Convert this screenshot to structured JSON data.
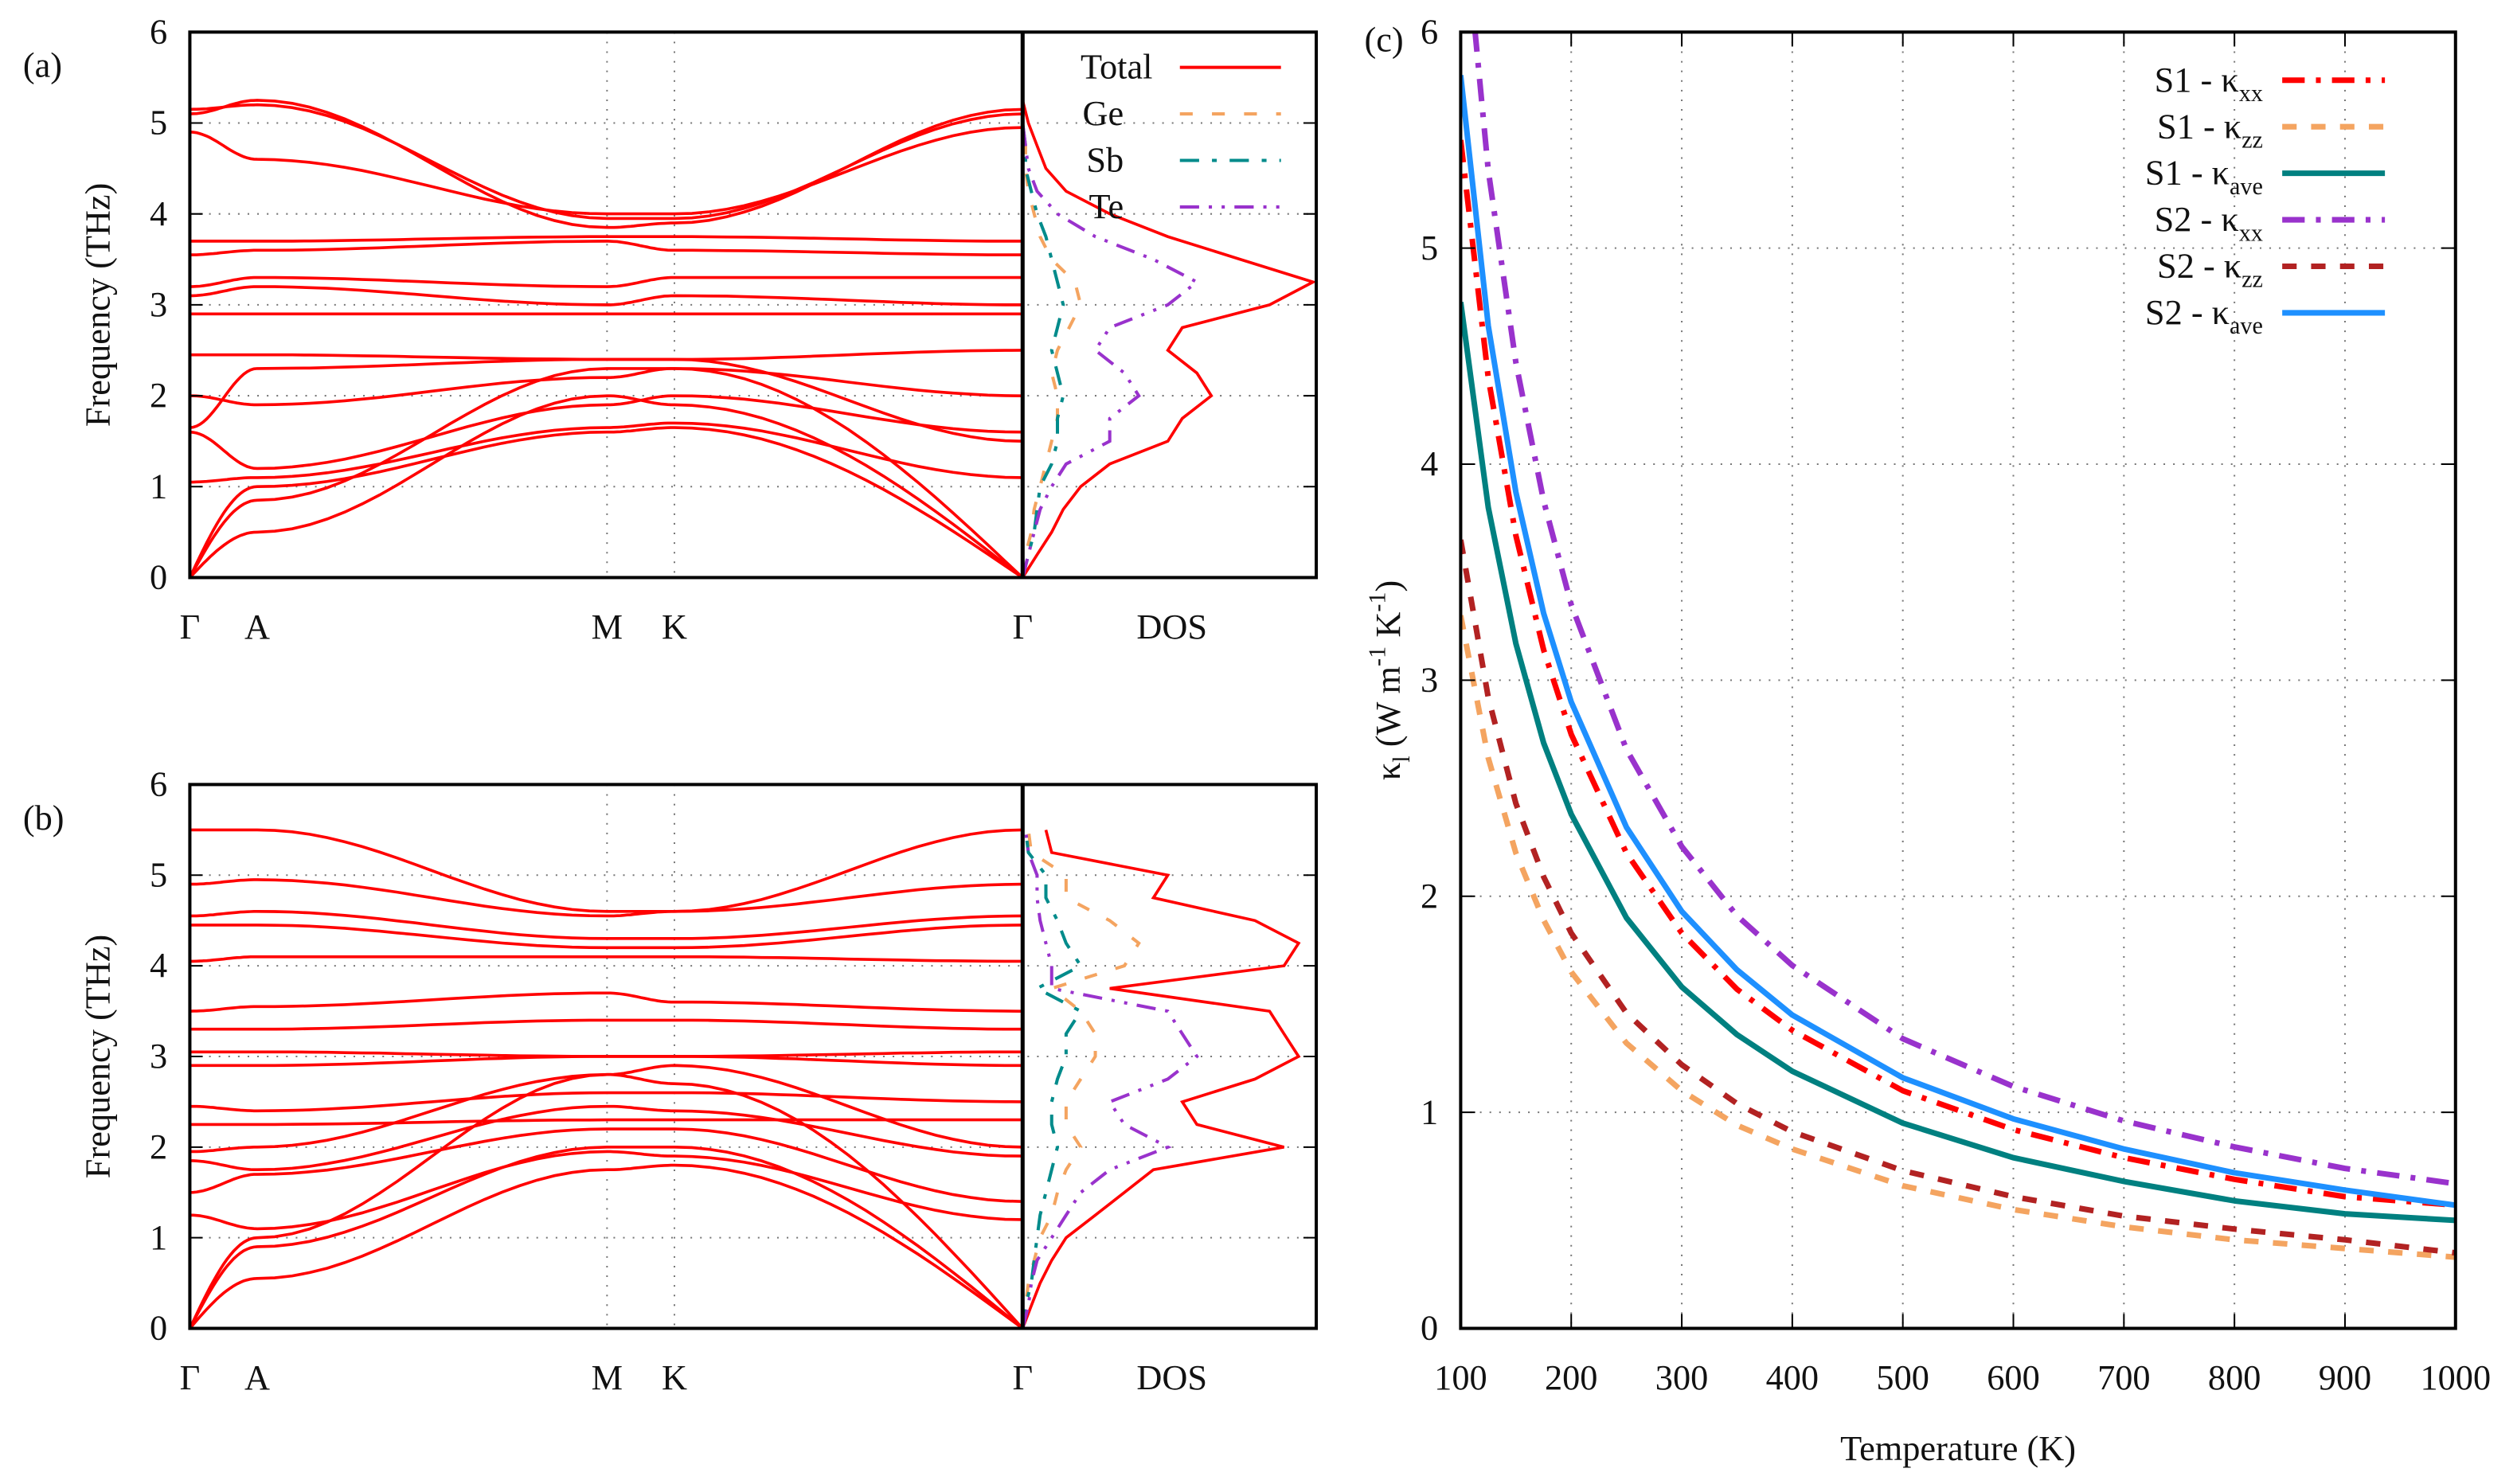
{
  "chart_data": [
    {
      "type": "line",
      "panel_label": "(a)",
      "ylabel": "Frequency (THz)",
      "ylim": [
        0,
        6
      ],
      "yticks": [
        "0",
        "1",
        "2",
        "3",
        "4",
        "5",
        "6"
      ],
      "kpoints": [
        "Γ",
        "A",
        "M",
        "K",
        "Γ"
      ],
      "dos_label": "DOS",
      "bands": [
        [
          0,
          1.0,
          1.6,
          1.65,
          0
        ],
        [
          0,
          0.5,
          2.0,
          1.9,
          0
        ],
        [
          0,
          0.85,
          2.3,
          2.3,
          0
        ],
        [
          1.05,
          1.1,
          1.65,
          1.7,
          1.1
        ],
        [
          1.6,
          1.2,
          1.9,
          2.0,
          1.6
        ],
        [
          1.65,
          2.3,
          2.4,
          2.4,
          1.5
        ],
        [
          2.0,
          1.9,
          2.2,
          2.3,
          2.0
        ],
        [
          2.45,
          2.45,
          2.4,
          2.4,
          2.5
        ],
        [
          2.9,
          2.9,
          2.9,
          2.9,
          2.9
        ],
        [
          3.1,
          3.2,
          3.0,
          3.1,
          3.0
        ],
        [
          3.2,
          3.3,
          3.2,
          3.3,
          3.3
        ],
        [
          3.55,
          3.6,
          3.7,
          3.6,
          3.55
        ],
        [
          3.7,
          3.7,
          3.75,
          3.75,
          3.7
        ],
        [
          4.9,
          4.6,
          4.0,
          4.0,
          4.95
        ],
        [
          5.1,
          5.25,
          3.85,
          3.9,
          5.15
        ],
        [
          5.15,
          5.2,
          3.95,
          3.95,
          5.1
        ]
      ],
      "dos_freq": [
        0,
        0.25,
        0.5,
        0.75,
        1,
        1.25,
        1.5,
        1.75,
        2,
        2.25,
        2.5,
        2.75,
        3,
        3.25,
        3.5,
        3.75,
        4,
        4.25,
        4.5,
        4.75,
        5,
        5.25
      ],
      "dos": [
        {
          "name": "Total",
          "color": "#ff0000",
          "dash": "",
          "values": [
            0,
            0.05,
            0.1,
            0.14,
            0.2,
            0.3,
            0.5,
            0.55,
            0.65,
            0.6,
            0.5,
            0.55,
            0.85,
            1.0,
            0.75,
            0.5,
            0.3,
            0.15,
            0.08,
            0.05,
            0.02,
            0
          ]
        },
        {
          "name": "Ge",
          "color": "#f4a460",
          "dash": "8,12",
          "values": [
            0,
            0.01,
            0.03,
            0.04,
            0.06,
            0.08,
            0.1,
            0.12,
            0.12,
            0.1,
            0.12,
            0.16,
            0.2,
            0.18,
            0.1,
            0.06,
            0.04,
            0.02,
            0.01,
            0.01,
            0,
            0
          ]
        },
        {
          "name": "Sb",
          "color": "#008b8b",
          "dash": "12,8,3,8",
          "values": [
            0,
            0.02,
            0.04,
            0.05,
            0.06,
            0.1,
            0.12,
            0.12,
            0.14,
            0.12,
            0.1,
            0.12,
            0.14,
            0.12,
            0.1,
            0.08,
            0.05,
            0.03,
            0.01,
            0.01,
            0,
            0
          ]
        },
        {
          "name": "Te",
          "color": "#9932cc",
          "dash": "12,6,2,6,2,6",
          "values": [
            0,
            0.02,
            0.04,
            0.06,
            0.1,
            0.15,
            0.3,
            0.3,
            0.4,
            0.35,
            0.25,
            0.3,
            0.5,
            0.6,
            0.45,
            0.25,
            0.12,
            0.05,
            0.02,
            0.01,
            0,
            0
          ]
        }
      ]
    },
    {
      "type": "line",
      "panel_label": "(b)",
      "ylabel": "Frequency (THz)",
      "ylim": [
        0,
        6
      ],
      "yticks": [
        "0",
        "1",
        "2",
        "3",
        "4",
        "5",
        "6"
      ],
      "kpoints": [
        "Γ",
        "A",
        "M",
        "K",
        "Γ"
      ],
      "dos_label": "DOS",
      "bands": [
        [
          0,
          0.55,
          1.75,
          1.8,
          0
        ],
        [
          0,
          0.9,
          2.0,
          2.0,
          0
        ],
        [
          0,
          1.0,
          2.8,
          2.7,
          0
        ],
        [
          1.25,
          1.1,
          1.95,
          1.9,
          1.2
        ],
        [
          1.5,
          1.7,
          2.2,
          2.2,
          1.4
        ],
        [
          1.85,
          1.75,
          2.45,
          2.4,
          1.9
        ],
        [
          1.95,
          2.0,
          2.8,
          2.9,
          2.0
        ],
        [
          2.25,
          2.25,
          2.3,
          2.3,
          2.3
        ],
        [
          2.45,
          2.4,
          2.6,
          2.6,
          2.5
        ],
        [
          2.9,
          2.9,
          3.0,
          3.0,
          2.9
        ],
        [
          3.05,
          3.05,
          3.0,
          3.0,
          3.05
        ],
        [
          3.3,
          3.3,
          3.4,
          3.4,
          3.3
        ],
        [
          3.5,
          3.55,
          3.7,
          3.6,
          3.5
        ],
        [
          4.05,
          4.1,
          4.1,
          4.1,
          4.05
        ],
        [
          4.45,
          4.45,
          4.2,
          4.2,
          4.45
        ],
        [
          4.55,
          4.6,
          4.3,
          4.3,
          4.55
        ],
        [
          4.9,
          4.95,
          4.55,
          4.6,
          4.9
        ],
        [
          5.5,
          5.5,
          4.6,
          4.6,
          5.5
        ]
      ],
      "dos_freq": [
        0,
        0.25,
        0.5,
        0.75,
        1,
        1.25,
        1.5,
        1.75,
        2,
        2.25,
        2.5,
        2.75,
        3,
        3.25,
        3.5,
        3.75,
        4,
        4.25,
        4.5,
        4.75,
        5,
        5.25,
        5.5
      ],
      "dos": [
        {
          "name": "Total",
          "color": "#ff0000",
          "dash": "",
          "values": [
            0,
            0.03,
            0.06,
            0.1,
            0.15,
            0.25,
            0.35,
            0.45,
            0.9,
            0.6,
            0.55,
            0.8,
            0.95,
            0.9,
            0.85,
            0.3,
            0.9,
            0.95,
            0.8,
            0.45,
            0.5,
            0.1,
            0.08
          ]
        },
        {
          "name": "Ge",
          "color": "#f4a460",
          "dash": "8,12",
          "values": [
            0,
            0.01,
            0.02,
            0.04,
            0.06,
            0.1,
            0.12,
            0.15,
            0.2,
            0.15,
            0.15,
            0.2,
            0.25,
            0.25,
            0.2,
            0.1,
            0.35,
            0.4,
            0.3,
            0.15,
            0.15,
            0.03,
            0.02
          ]
        },
        {
          "name": "Sb",
          "color": "#008b8b",
          "dash": "12,8,3,8",
          "values": [
            0,
            0.01,
            0.03,
            0.04,
            0.05,
            0.06,
            0.08,
            0.1,
            0.12,
            0.1,
            0.1,
            0.12,
            0.15,
            0.15,
            0.2,
            0.05,
            0.2,
            0.15,
            0.12,
            0.08,
            0.08,
            0.02,
            0.01
          ]
        },
        {
          "name": "Te",
          "color": "#9932cc",
          "dash": "12,6,2,6,2,6",
          "values": [
            0,
            0.02,
            0.03,
            0.05,
            0.1,
            0.15,
            0.2,
            0.3,
            0.5,
            0.35,
            0.3,
            0.5,
            0.6,
            0.55,
            0.5,
            0.1,
            0.1,
            0.08,
            0.06,
            0.05,
            0.05,
            0.02,
            0.01
          ]
        }
      ]
    },
    {
      "type": "line",
      "panel_label": "(c)",
      "xlabel": "Temperature (K)",
      "ylabel": "κ",
      "ylabel_sub": "l",
      "ylabel_unit": " (W m",
      "ylabel_exp1": "-1",
      "ylabel_k": " K",
      "ylabel_exp2": "-1",
      "ylabel_end": ")",
      "xlim": [
        100,
        1000
      ],
      "ylim": [
        0,
        6
      ],
      "xticks": [
        "100",
        "200",
        "300",
        "400",
        "500",
        "600",
        "700",
        "800",
        "900",
        "1000"
      ],
      "yticks": [
        "0",
        "1",
        "2",
        "3",
        "4",
        "5",
        "6"
      ],
      "legend_position": "top-right",
      "x": [
        100,
        125,
        150,
        175,
        200,
        250,
        300,
        350,
        400,
        500,
        600,
        700,
        800,
        900,
        1000
      ],
      "series": [
        {
          "name": "S1 - κ",
          "sub": "xx",
          "color": "#ff0000",
          "dash": "14,7,3,7",
          "values": [
            5.5,
            4.4,
            3.67,
            3.14,
            2.75,
            2.2,
            1.83,
            1.57,
            1.38,
            1.1,
            0.92,
            0.79,
            0.69,
            0.61,
            0.57
          ]
        },
        {
          "name": "S1 - κ",
          "sub": "zz",
          "color": "#f4a460",
          "dash": "9,9",
          "values": [
            3.3,
            2.64,
            2.2,
            1.89,
            1.65,
            1.32,
            1.1,
            0.94,
            0.83,
            0.66,
            0.55,
            0.47,
            0.41,
            0.37,
            0.33
          ]
        },
        {
          "name": "S1 - κ",
          "sub": "ave",
          "color": "#008080",
          "dash": "",
          "values": [
            4.75,
            3.8,
            3.17,
            2.71,
            2.38,
            1.9,
            1.58,
            1.36,
            1.19,
            0.95,
            0.79,
            0.68,
            0.59,
            0.53,
            0.5
          ]
        },
        {
          "name": "S2 - κ",
          "sub": "xx",
          "color": "#9932cc",
          "dash": "14,7,3,7",
          "values": [
            6.7,
            5.36,
            4.47,
            3.83,
            3.35,
            2.68,
            2.23,
            1.91,
            1.68,
            1.34,
            1.12,
            0.96,
            0.84,
            0.74,
            0.67
          ]
        },
        {
          "name": "S2 - κ",
          "sub": "zz",
          "color": "#b22222",
          "dash": "9,9",
          "values": [
            3.65,
            2.92,
            2.43,
            2.09,
            1.83,
            1.46,
            1.22,
            1.04,
            0.91,
            0.73,
            0.61,
            0.52,
            0.46,
            0.41,
            0.35
          ]
        },
        {
          "name": "S2 - κ",
          "sub": "ave",
          "color": "#1e90ff",
          "dash": "",
          "values": [
            5.8,
            4.64,
            3.87,
            3.31,
            2.9,
            2.32,
            1.93,
            1.66,
            1.45,
            1.16,
            0.97,
            0.83,
            0.72,
            0.64,
            0.57
          ]
        }
      ]
    }
  ]
}
